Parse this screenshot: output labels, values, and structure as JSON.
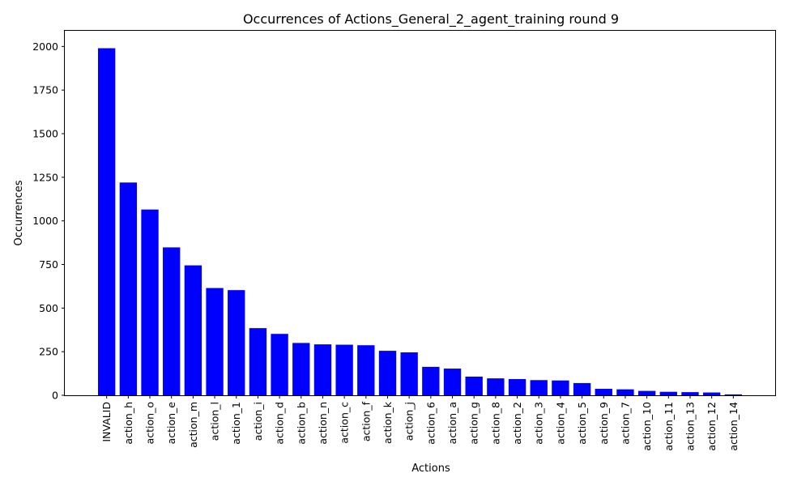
{
  "chart_data": {
    "type": "bar",
    "title": "Occurrences of Actions_General_2_agent_training round 9",
    "xlabel": "Actions",
    "ylabel": "Occurrences",
    "ylim": [
      0,
      2090
    ],
    "yticks": [
      0,
      250,
      500,
      750,
      1000,
      1250,
      1500,
      1750,
      2000
    ],
    "bar_color": "#0000ff",
    "grid": false,
    "categories": [
      "INVALID",
      "action_h",
      "action_o",
      "action_e",
      "action_m",
      "action_l",
      "action_1",
      "action_i",
      "action_d",
      "action_b",
      "action_n",
      "action_c",
      "action_f",
      "action_k",
      "action_j",
      "action_6",
      "action_a",
      "action_g",
      "action_8",
      "action_2",
      "action_3",
      "action_4",
      "action_5",
      "action_9",
      "action_7",
      "action_10",
      "action_11",
      "action_13",
      "action_12",
      "action_14"
    ],
    "values": [
      1990,
      1220,
      1065,
      848,
      745,
      615,
      603,
      385,
      352,
      300,
      292,
      290,
      287,
      255,
      246,
      163,
      153,
      107,
      97,
      93,
      87,
      85,
      70,
      37,
      34,
      25,
      20,
      18,
      16,
      5
    ]
  }
}
